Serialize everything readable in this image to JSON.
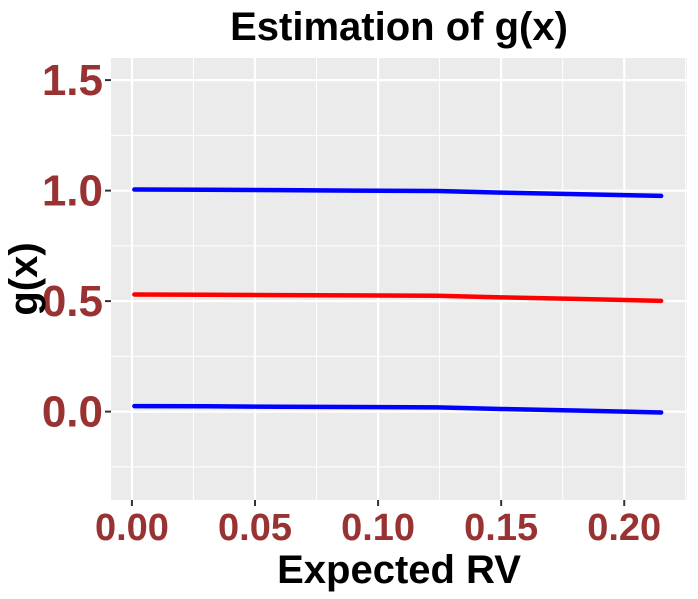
{
  "chart_data": {
    "type": "line",
    "title": "Estimation of g(x)",
    "xlabel": "Expected RV",
    "ylabel": "g(x)",
    "xlim": [
      -0.0085,
      0.2255
    ],
    "ylim": [
      -0.4,
      1.6
    ],
    "x_ticks": [
      0.0,
      0.05,
      0.1,
      0.15,
      0.2
    ],
    "x_tick_labels": [
      "0.00",
      "0.05",
      "0.10",
      "0.15",
      "0.20"
    ],
    "y_ticks": [
      0.0,
      0.5,
      1.0,
      1.5
    ],
    "y_tick_labels": [
      "0.0",
      "0.5",
      "1.0",
      "1.5"
    ],
    "grid": true,
    "colors": {
      "panel_background": "#ebebeb",
      "grid": "#ffffff",
      "tick_label": "#993333",
      "upper_band": "#0000ff",
      "estimate": "#ff0000",
      "lower_band": "#0000ff"
    },
    "series": [
      {
        "name": "upper band",
        "color": "#0000ff",
        "x": [
          0.001,
          0.03,
          0.06,
          0.09,
          0.124,
          0.15,
          0.18,
          0.215
        ],
        "y": [
          1.005,
          1.004,
          1.002,
          1.0,
          0.998,
          0.991,
          0.984,
          0.976
        ]
      },
      {
        "name": "estimate",
        "color": "#ff0000",
        "x": [
          0.001,
          0.03,
          0.06,
          0.09,
          0.124,
          0.15,
          0.18,
          0.215
        ],
        "y": [
          0.53,
          0.529,
          0.527,
          0.526,
          0.524,
          0.517,
          0.51,
          0.501
        ]
      },
      {
        "name": "lower band",
        "color": "#0000ff",
        "x": [
          0.001,
          0.03,
          0.06,
          0.09,
          0.124,
          0.15,
          0.18,
          0.215
        ],
        "y": [
          0.025,
          0.024,
          0.022,
          0.021,
          0.019,
          0.012,
          0.005,
          -0.004
        ]
      }
    ]
  }
}
